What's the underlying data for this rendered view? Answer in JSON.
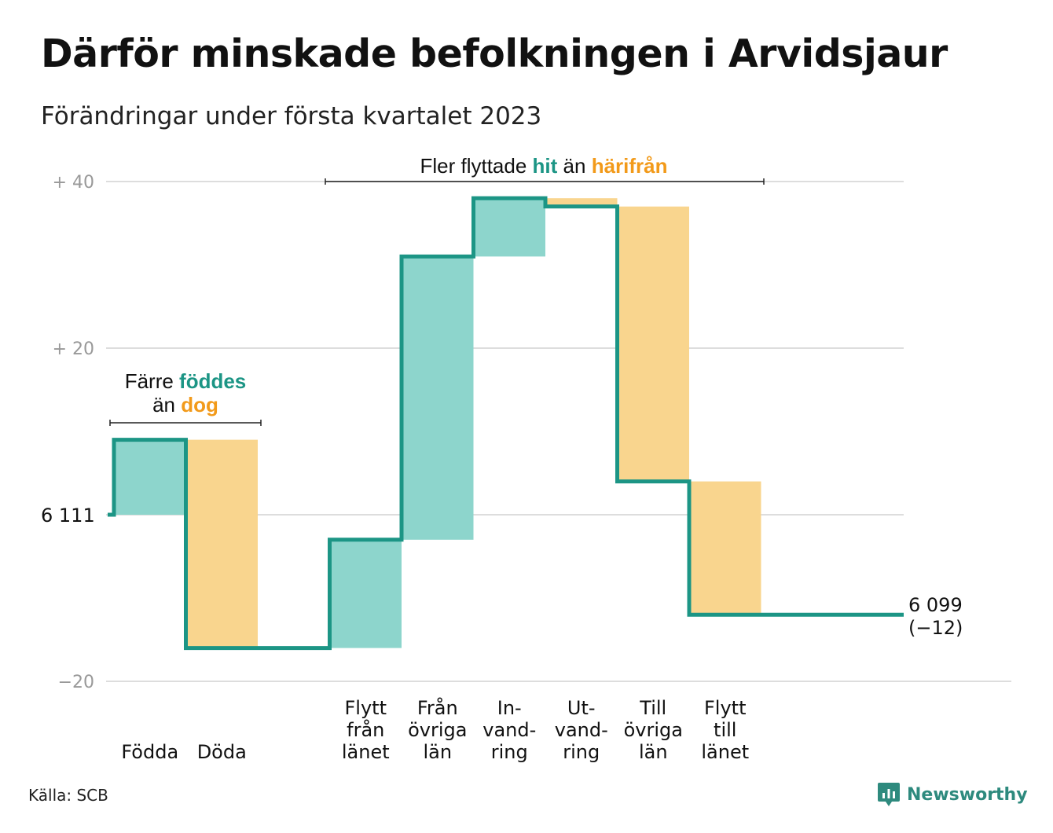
{
  "title": "Därför minskade befolkningen i Arvidsjaur",
  "subtitle": "Förändringar under första kvartalet 2023",
  "source": "Källa: SCB",
  "brand": "Newsworthy",
  "colors": {
    "increase_fill": "#8dd5cc",
    "decrease_fill": "#f9d58e",
    "line": "#1c9585",
    "increase_text": "#1c9585",
    "decrease_text": "#f29a1a",
    "grid": "#dddddd",
    "axis_text": "#999999"
  },
  "annotations": {
    "births": {
      "line1_pre": "Färre ",
      "line1_hi": "föddes",
      "line2_pre": "än ",
      "line2_hi": "dog"
    },
    "migration": {
      "pre": "Fler flyttade ",
      "hi1": "hit",
      "mid": " än ",
      "hi2": "härifrån"
    }
  },
  "labels": {
    "start": "6 111",
    "end_value": "6 099",
    "end_change": "(−12)"
  },
  "chart_data": {
    "type": "waterfall",
    "start_value": 6111,
    "end_value": 6099,
    "net_change": -12,
    "ylim": [
      -20,
      42
    ],
    "yticks": [
      {
        "value": 40,
        "label": "+ 40"
      },
      {
        "value": 20,
        "label": "+ 20"
      },
      {
        "value": 0,
        "label": ""
      },
      {
        "value": -20,
        "label": "−20"
      }
    ],
    "steps": [
      {
        "label": [
          "Födda"
        ],
        "change": 9,
        "kind": "increase"
      },
      {
        "label": [
          "Döda"
        ],
        "change": -25,
        "kind": "decrease"
      },
      {
        "label": [],
        "change": 0,
        "kind": "gap"
      },
      {
        "label": [
          "Flytt",
          "från",
          "länet"
        ],
        "change": 13,
        "kind": "increase"
      },
      {
        "label": [
          "Från",
          "övriga",
          "län"
        ],
        "change": 34,
        "kind": "increase"
      },
      {
        "label": [
          "In-",
          "vand-",
          "ring"
        ],
        "change": 7,
        "kind": "increase"
      },
      {
        "label": [
          "Ut-",
          "vand-",
          "ring"
        ],
        "change": -1,
        "kind": "decrease"
      },
      {
        "label": [
          "Till",
          "övriga",
          "län"
        ],
        "change": -33,
        "kind": "decrease"
      },
      {
        "label": [
          "Flytt",
          "till",
          "länet"
        ],
        "change": -16,
        "kind": "decrease"
      },
      {
        "label": [],
        "change": 0,
        "kind": "tail"
      }
    ]
  }
}
